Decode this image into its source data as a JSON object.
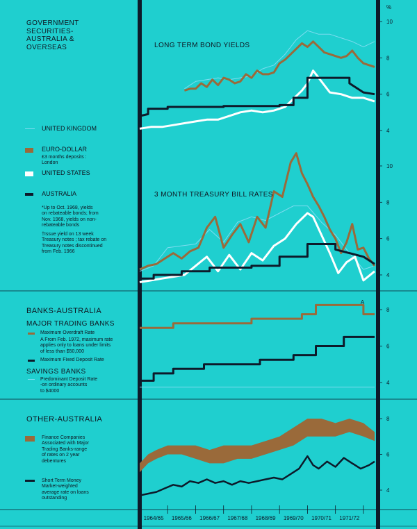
{
  "unit": "%",
  "sections": {
    "gov": {
      "title": "GOVERNMENT SECURITIES-AUSTRALIA & OVERSEAS",
      "title_lines": [
        "GOVERNMENT",
        "SECURITIES-",
        "AUSTRALIA &",
        "OVERSEAS"
      ],
      "legend": {
        "uk": "UNITED KINGDOM",
        "euro": "EURO-DOLLAR",
        "euro_note": "£3 months deposits :\nLondon",
        "us": "UNITED STATES",
        "aus": "AUSTRALIA",
        "note1": "*Up to Oct. 1968, yields\non rebateable bonds; from\nNov. 1968, yields on non-\nrebateable bonds",
        "note2": "†Issue yield on 13 week\nTreasury notes ; tax rebate on\nTreasury notes discontinued\nfrom Feb. 1966"
      }
    },
    "banks": {
      "title": "BANKS-AUSTRALIA",
      "major": "MAJOR TRADING BANKS",
      "overdraft": "Maximum Overdraft Rate",
      "overdraft_note": "A From Feb. 1972, maximum rate\napplies only to loans under limits\nof less than $50,000",
      "deposit": "Maximum Fixed Deposit Rate",
      "savings": "SAVINGS BANKS",
      "savings_rate": "Predominant Deposit Rate\n-on ordinary accounts\nto $4000"
    },
    "other": {
      "title": "OTHER-AUSTRALIA",
      "finance": "Finance Companies\nAssociated with Major\nTrading Banks-range\nof rates on 2 year\ndebentures",
      "stm": "Short Term Money\nMarket-weighted\naverage rate on loans\noutstanding"
    }
  },
  "colors": {
    "background": "#1fcfcf",
    "uk": "#7fdcf0",
    "euro": "#9a6a3a",
    "us": "#ffffff",
    "aus": "#0d1a2a",
    "finance": "#9a6a3a"
  },
  "chart_data": [
    {
      "type": "line",
      "title": "LONG TERM BOND YIELDS",
      "x_unit": "financial year",
      "x_range": [
        1964.0,
        1972.5
      ],
      "ylim": [
        4,
        10
      ],
      "yticks": [
        4,
        6,
        8,
        10
      ],
      "ytick_labels": [
        "4",
        "6",
        "8",
        "10"
      ],
      "series": [
        {
          "name": "UNITED KINGDOM",
          "x": [
            1965.6,
            1966.0,
            1966.4,
            1966.8,
            1967.2,
            1967.6,
            1968.0,
            1968.4,
            1968.8,
            1969.2,
            1969.6,
            1970.0,
            1970.4,
            1970.8,
            1971.2,
            1971.6,
            1972.0,
            1972.4
          ],
          "y": [
            6.3,
            6.7,
            6.8,
            6.9,
            6.8,
            6.9,
            7.0,
            7.4,
            7.6,
            8.2,
            9.0,
            9.5,
            9.3,
            9.3,
            9.1,
            8.9,
            8.6,
            8.9
          ]
        },
        {
          "name": "EURO-DOLLAR",
          "x": [
            1965.6,
            1965.8,
            1966.0,
            1966.2,
            1966.4,
            1966.6,
            1966.8,
            1967.0,
            1967.2,
            1967.4,
            1967.6,
            1967.8,
            1968.0,
            1968.2,
            1968.4,
            1968.6,
            1968.8,
            1969.0,
            1969.2,
            1969.4,
            1969.6,
            1969.8,
            1970.0,
            1970.2,
            1970.4,
            1970.6,
            1970.8,
            1971.0,
            1971.2,
            1971.4,
            1971.6,
            1971.8,
            1972.0,
            1972.4
          ],
          "y": [
            6.2,
            6.3,
            6.3,
            6.6,
            6.4,
            6.8,
            6.5,
            6.9,
            6.8,
            6.6,
            6.7,
            7.1,
            6.9,
            7.3,
            7.1,
            7.1,
            7.2,
            7.7,
            7.9,
            8.2,
            8.5,
            8.8,
            8.6,
            8.9,
            8.6,
            8.3,
            8.2,
            8.1,
            8.0,
            8.1,
            8.4,
            8.0,
            7.7,
            7.5
          ]
        },
        {
          "name": "UNITED STATES",
          "x": [
            1964.0,
            1964.4,
            1964.8,
            1965.2,
            1965.6,
            1966.0,
            1966.4,
            1966.8,
            1967.2,
            1967.6,
            1968.0,
            1968.4,
            1968.8,
            1969.2,
            1969.6,
            1969.8,
            1970.0,
            1970.2,
            1970.4,
            1970.8,
            1971.2,
            1971.6,
            1972.0,
            1972.4
          ],
          "y": [
            4.1,
            4.2,
            4.2,
            4.3,
            4.4,
            4.5,
            4.6,
            4.6,
            4.8,
            5.0,
            5.1,
            5.0,
            5.1,
            5.3,
            5.9,
            6.2,
            6.6,
            7.3,
            6.9,
            6.1,
            6.0,
            5.8,
            5.8,
            5.6
          ]
        },
        {
          "name": "AUSTRALIA",
          "x": [
            1964.0,
            1964.3,
            1964.3,
            1965.0,
            1965.0,
            1967.0,
            1967.0,
            1969.0,
            1969.0,
            1969.5,
            1969.5,
            1970.0,
            1970.0,
            1971.5,
            1971.5,
            1972.0,
            1972.4
          ],
          "y": [
            4.8,
            4.9,
            5.2,
            5.2,
            5.3,
            5.3,
            5.35,
            5.35,
            5.4,
            5.4,
            5.8,
            5.8,
            6.9,
            6.9,
            6.6,
            6.1,
            6.0
          ],
          "style": "step"
        }
      ]
    },
    {
      "type": "line",
      "title": "3 MONTH TREASURY BILL RATES",
      "x_range": [
        1964.0,
        1972.5
      ],
      "ylim": [
        4,
        10
      ],
      "yticks": [
        4,
        6,
        8,
        10
      ],
      "ytick_labels": [
        "4",
        "6",
        "8",
        "10"
      ],
      "series": [
        {
          "name": "UNITED KINGDOM",
          "x": [
            1964.0,
            1964.5,
            1965.0,
            1965.5,
            1966.0,
            1966.5,
            1967.0,
            1967.5,
            1968.0,
            1968.5,
            1969.0,
            1969.5,
            1970.0,
            1970.5,
            1971.0,
            1971.5,
            1972.0,
            1972.4
          ],
          "y": [
            4.2,
            4.5,
            5.5,
            5.6,
            5.7,
            6.5,
            5.8,
            6.9,
            7.2,
            7.0,
            7.4,
            7.8,
            7.8,
            6.9,
            6.2,
            5.2,
            4.3,
            4.5
          ]
        },
        {
          "name": "EURO-DOLLAR",
          "x": [
            1964.0,
            1964.3,
            1964.6,
            1964.9,
            1965.2,
            1965.5,
            1965.8,
            1966.1,
            1966.4,
            1966.7,
            1967.0,
            1967.3,
            1967.6,
            1967.9,
            1968.2,
            1968.5,
            1968.8,
            1969.1,
            1969.4,
            1969.6,
            1969.8,
            1970.0,
            1970.2,
            1970.4,
            1970.6,
            1970.8,
            1971.0,
            1971.2,
            1971.4,
            1971.6,
            1971.8,
            1972.0,
            1972.2,
            1972.4
          ],
          "y": [
            4.3,
            4.5,
            4.6,
            4.9,
            5.2,
            4.9,
            5.3,
            5.5,
            6.6,
            7.2,
            5.5,
            6.2,
            6.8,
            5.8,
            7.2,
            6.6,
            8.6,
            8.3,
            10.2,
            10.7,
            9.6,
            9.0,
            8.3,
            7.8,
            7.2,
            6.5,
            6.0,
            5.2,
            5.8,
            6.8,
            5.4,
            5.5,
            4.9,
            4.5
          ]
        },
        {
          "name": "UNITED STATES",
          "x": [
            1964.0,
            1964.4,
            1964.8,
            1965.2,
            1965.6,
            1966.0,
            1966.4,
            1966.8,
            1967.2,
            1967.6,
            1968.0,
            1968.4,
            1968.8,
            1969.2,
            1969.6,
            1970.0,
            1970.2,
            1970.5,
            1970.8,
            1971.1,
            1971.4,
            1971.7,
            1972.0,
            1972.4
          ],
          "y": [
            3.6,
            3.7,
            3.8,
            3.9,
            4.0,
            4.5,
            5.0,
            4.2,
            5.1,
            4.3,
            5.2,
            4.8,
            5.6,
            6.0,
            6.8,
            7.4,
            7.2,
            6.2,
            5.2,
            4.1,
            4.7,
            5.0,
            3.7,
            4.2
          ]
        },
        {
          "name": "AUSTRALIA",
          "x": [
            1964.0,
            1964.5,
            1964.5,
            1965.5,
            1965.5,
            1966.5,
            1966.5,
            1968.0,
            1968.0,
            1969.0,
            1969.0,
            1970.0,
            1970.0,
            1971.0,
            1971.0,
            1972.0,
            1972.4
          ],
          "y": [
            3.8,
            3.8,
            4.0,
            4.0,
            4.2,
            4.2,
            4.4,
            4.4,
            4.5,
            4.5,
            5.0,
            5.0,
            5.7,
            5.7,
            5.4,
            5.0,
            4.6
          ],
          "style": "step"
        }
      ]
    },
    {
      "type": "line",
      "title": "BANKS-AUSTRALIA",
      "x_range": [
        1964.0,
        1972.5
      ],
      "ylim": [
        4,
        8.6
      ],
      "yticks": [
        4,
        6,
        8
      ],
      "ytick_labels": [
        "4",
        "6",
        "8"
      ],
      "annotations": [
        "A"
      ],
      "series": [
        {
          "name": "Maximum Overdraft Rate",
          "x": [
            1964.0,
            1965.2,
            1965.2,
            1968.0,
            1968.0,
            1969.8,
            1969.8,
            1970.3,
            1970.3,
            1972.0,
            1972.0,
            1972.4
          ],
          "y": [
            7.0,
            7.0,
            7.25,
            7.25,
            7.5,
            7.5,
            7.75,
            7.75,
            8.25,
            8.25,
            7.75,
            7.75
          ],
          "style": "step"
        },
        {
          "name": "Maximum Fixed Deposit Rate",
          "x": [
            1964.0,
            1964.5,
            1964.5,
            1965.2,
            1965.2,
            1966.3,
            1966.3,
            1968.3,
            1968.3,
            1969.5,
            1969.5,
            1970.3,
            1970.3,
            1971.3,
            1971.3,
            1972.4
          ],
          "y": [
            4.1,
            4.1,
            4.5,
            4.5,
            4.75,
            4.75,
            5.0,
            5.0,
            5.25,
            5.25,
            5.5,
            5.5,
            6.0,
            6.0,
            6.5,
            6.5
          ],
          "style": "step"
        },
        {
          "name": "Predominant Deposit Rate",
          "x": [
            1964.0,
            1972.4
          ],
          "y": [
            3.75,
            3.75
          ]
        }
      ]
    },
    {
      "type": "area",
      "title": "OTHER-AUSTRALIA",
      "x_range": [
        1964.0,
        1972.5
      ],
      "ylim": [
        3,
        8.6
      ],
      "yticks": [
        4,
        6,
        8
      ],
      "ytick_labels": [
        "4",
        "6",
        "8"
      ],
      "x_tick_labels": [
        "1964/65",
        "1965/66",
        "1966/67",
        "1967/68",
        "1968/69",
        "1969/70",
        "1970/71",
        "1971/72"
      ],
      "series": [
        {
          "name": "Finance Companies",
          "x": [
            1964.0,
            1964.3,
            1964.6,
            1965.0,
            1965.5,
            1966.0,
            1966.5,
            1967.0,
            1967.5,
            1968.0,
            1968.5,
            1969.0,
            1969.5,
            1970.0,
            1970.5,
            1971.0,
            1971.5,
            1972.0,
            1972.4
          ],
          "low": [
            5.0,
            5.5,
            5.75,
            6.0,
            6.0,
            5.75,
            5.5,
            5.5,
            5.75,
            5.75,
            6.0,
            6.25,
            6.5,
            7.0,
            7.0,
            7.0,
            7.25,
            7.0,
            6.75
          ],
          "high": [
            5.5,
            6.0,
            6.25,
            6.5,
            6.5,
            6.5,
            6.25,
            6.5,
            6.5,
            6.5,
            6.75,
            7.0,
            7.5,
            8.0,
            8.0,
            7.75,
            8.0,
            7.75,
            7.25
          ]
        },
        {
          "name": "Short Term Money",
          "x": [
            1964.0,
            1964.3,
            1964.6,
            1964.9,
            1965.2,
            1965.5,
            1965.8,
            1966.1,
            1966.4,
            1966.7,
            1967.0,
            1967.3,
            1967.6,
            1967.9,
            1968.2,
            1968.5,
            1968.8,
            1969.1,
            1969.4,
            1969.7,
            1970.0,
            1970.2,
            1970.4,
            1970.7,
            1971.0,
            1971.3,
            1971.6,
            1971.9,
            1972.2,
            1972.4
          ],
          "y": [
            3.7,
            3.8,
            3.9,
            4.1,
            4.3,
            4.2,
            4.5,
            4.4,
            4.6,
            4.4,
            4.5,
            4.3,
            4.5,
            4.4,
            4.5,
            4.6,
            4.7,
            4.6,
            4.9,
            5.2,
            5.9,
            5.4,
            5.2,
            5.6,
            5.3,
            5.8,
            5.5,
            5.2,
            5.4,
            5.6
          ]
        }
      ]
    }
  ]
}
